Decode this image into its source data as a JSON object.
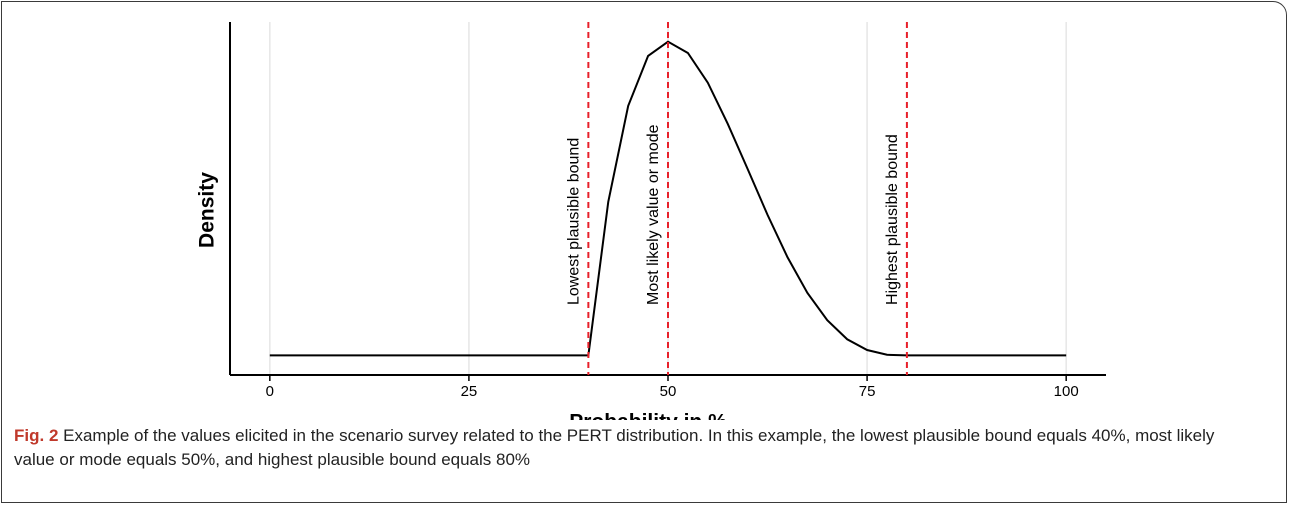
{
  "chart_data": {
    "type": "line",
    "x_label": "Probability in %",
    "y_label": "Density",
    "x": [
      0,
      40,
      42.5,
      45,
      47.5,
      50,
      52.5,
      55,
      57.5,
      60,
      62.5,
      65,
      67.5,
      70,
      72.5,
      75,
      77.5,
      80,
      100
    ],
    "values": [
      0,
      0,
      0.0258,
      0.0419,
      0.0503,
      0.0527,
      0.0508,
      0.0458,
      0.0389,
      0.0313,
      0.0236,
      0.0165,
      0.0105,
      0.0059,
      0.0027,
      0.0009,
      0.0001,
      0,
      0
    ],
    "color": "#000000",
    "xlim": [
      -5,
      105
    ],
    "xticks": [
      0,
      25,
      50,
      75,
      100
    ],
    "ylim": [
      -0.0033,
      0.056
    ],
    "grid": true,
    "vlines": [
      {
        "x": 40,
        "label": "Lowest plausible bound"
      },
      {
        "x": 50,
        "label": "Most likely value or mode"
      },
      {
        "x": 80,
        "label": "Highest plausible bound"
      }
    ],
    "vline_color": "#e8202a"
  },
  "caption": {
    "label": "Fig. 2",
    "text": "Example of the values elicited in the scenario survey related to the PERT distribution. In this example, the lowest plausible bound equals 40%, most likely value or mode equals 50%, and highest plausible bound equals 80%"
  }
}
